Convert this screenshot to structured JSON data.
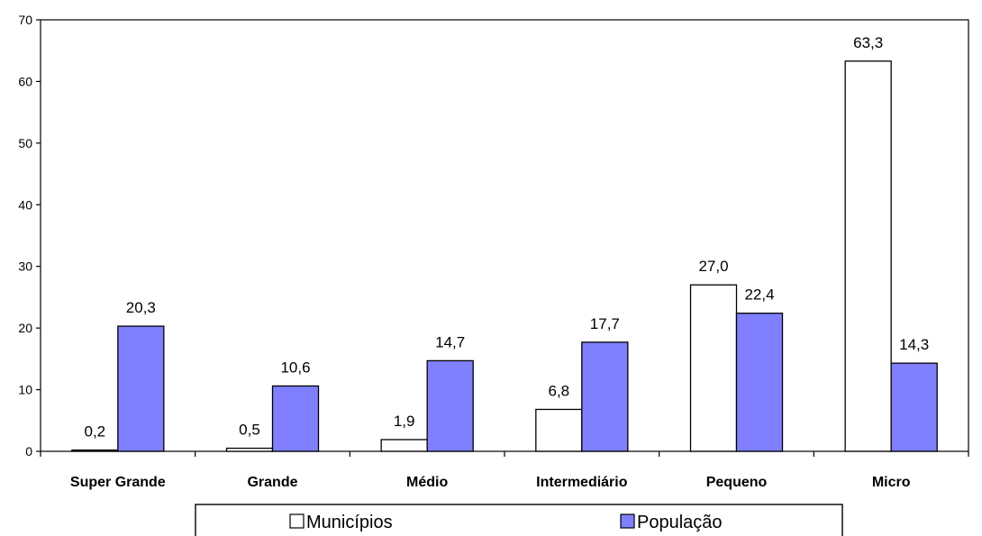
{
  "chart_data": {
    "type": "bar",
    "categories": [
      "Super Grande",
      "Grande",
      "Médio",
      "Intermediário",
      "Pequeno",
      "Micro"
    ],
    "series": [
      {
        "name": "Municípios",
        "values": [
          0.2,
          0.5,
          1.9,
          6.8,
          27.0,
          63.3
        ],
        "labels": [
          "0,2",
          "0,5",
          "1,9",
          "6,8",
          "27,0",
          "63,3"
        ],
        "color": "#ffffff"
      },
      {
        "name": "População",
        "values": [
          20.3,
          10.6,
          14.7,
          17.7,
          22.4,
          14.3
        ],
        "labels": [
          "20,3",
          "10,6",
          "14,7",
          "17,7",
          "22,4",
          "14,3"
        ],
        "color": "#8080ff"
      }
    ],
    "ylim": [
      0,
      70
    ],
    "yticks": [
      0,
      10,
      20,
      30,
      40,
      50,
      60,
      70
    ],
    "xlabel": "",
    "ylabel": "",
    "title": "",
    "grid": false,
    "legend_position": "bottom"
  }
}
